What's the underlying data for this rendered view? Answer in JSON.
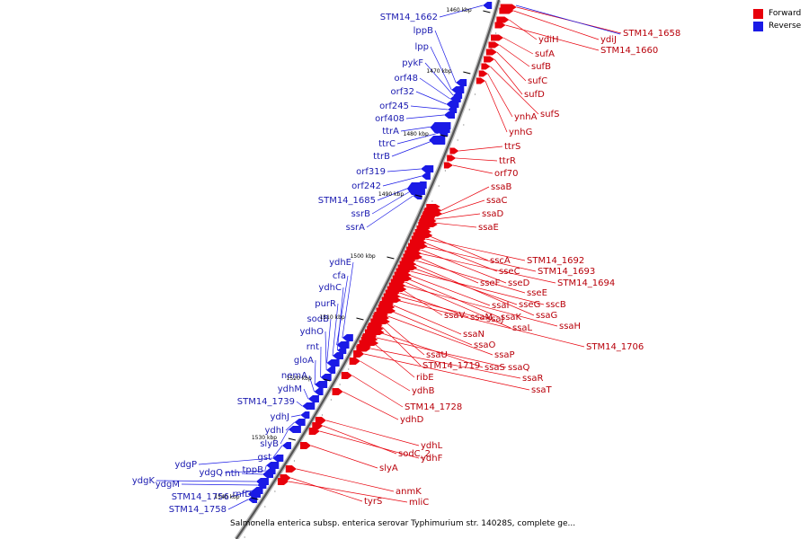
{
  "caption": "Salmonella enterica subsp. enterica serovar Typhimurium str. 14028S, complete ge...",
  "legend": {
    "forward": {
      "label": "Forward",
      "color": "#e8000b"
    },
    "reverse": {
      "label": "Reverse",
      "color": "#1a1ae6"
    }
  },
  "kbp_marks": [
    "1460 kbp",
    "1470 kbp",
    "1480 kbp",
    "1490 kbp",
    "1500 kbp",
    "1510 kbp",
    "1520 kbp",
    "1530 kbp",
    "1540 kbp"
  ],
  "forward_genes": [
    "STM14_1658",
    "ydiJ",
    "ydiH",
    "STM14_1660",
    "sufA",
    "sufB",
    "sufC",
    "sufD",
    "sufS",
    "ynhA",
    "ynhG",
    "ttrS",
    "ttrR",
    "orf70",
    "ssaB",
    "ssaC",
    "ssaD",
    "ssaE",
    "sscA",
    "STM14_1692",
    "sseC",
    "STM14_1693",
    "sseD",
    "STM14_1694",
    "sseF",
    "sseE",
    "ssaG",
    "sseG",
    "sscB",
    "ssaI",
    "ssaK",
    "ssaL",
    "ssaH",
    "ssaV",
    "ssaM",
    "ssaJ",
    "STM14_1706",
    "ssaN",
    "ssaO",
    "ssaP",
    "ssaU",
    "STM14_1719",
    "ssaS",
    "ssaQ",
    "ribE",
    "ssaR",
    "ssaT",
    "ydhB",
    "STM14_1728",
    "ydhD",
    "ydhL",
    "sodC_2",
    "ydhF",
    "slyA",
    "anmK",
    "tyrS",
    "mliC"
  ],
  "reverse_genes": [
    "STM14_1662",
    "lppB",
    "lpp",
    "pykF",
    "orf48",
    "orf32",
    "orf245",
    "orf408",
    "ttrA",
    "ttrC",
    "ttrB",
    "orf319",
    "orf242",
    "STM14_1685",
    "ssrB",
    "ssrA",
    "ydhE",
    "cfa",
    "ydhC",
    "purR",
    "sodB",
    "ydhO",
    "rnt",
    "gloA",
    "nemA",
    "ydhM",
    "STM14_1739",
    "ydhJ",
    "ydhI",
    "slyB",
    "gst",
    "ydgP",
    "tppB",
    "ydgQ",
    "nth",
    "ydgK",
    "ydgM",
    "STM14_1756",
    "rnfD",
    "STM14_1758"
  ]
}
